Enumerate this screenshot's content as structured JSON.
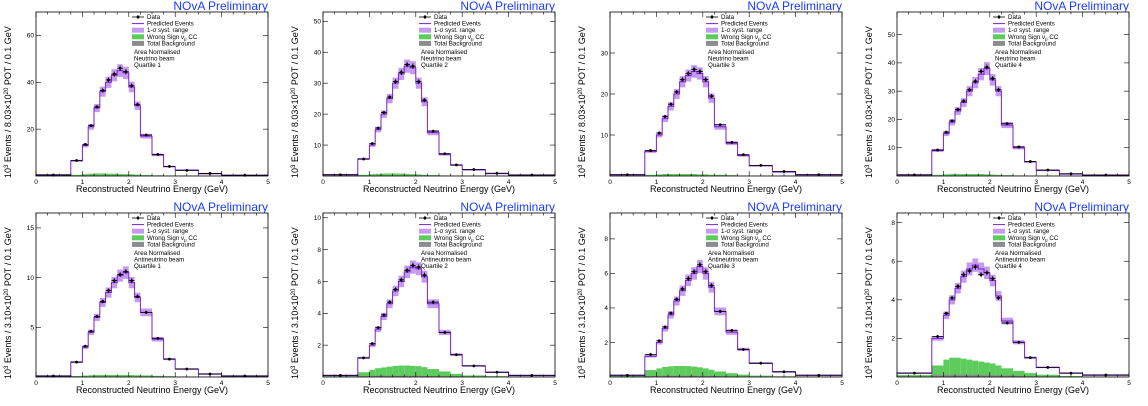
{
  "figure": {
    "banner": "NOvA Preliminary",
    "xlabel": "Reconstructed Neutrino Energy (GeV)",
    "ylabel_prefix": "10",
    "ylabel_exp": "3",
    "ylabel_mid": " Events / ",
    "ylabel_units": " POT / 0.1 GeV",
    "legend": {
      "data": "Data",
      "pred": "Predicted Events",
      "syst": "1-σ syst. range",
      "wrong_sign": "Wrong Sign ν",
      "wrong_sign_sub": "μ",
      "wrong_sign_suffix": " CC",
      "background": "Total Background",
      "norm": "Area Normalised"
    },
    "colors": {
      "banner": "#1a3cff",
      "prediction": "#7a1fd0",
      "syst_band": "#c79af2",
      "wrong_sign": "#5dcc5d",
      "background": "#8c8c8c",
      "data": "#000000"
    }
  },
  "chart_data": [
    {
      "type": "histogram",
      "beam": "Neutrino beam",
      "quartile": "Quartile 1",
      "pot_mantissa": "8.03",
      "pot_exp": "20",
      "xlim": [
        0,
        5
      ],
      "ylim": [
        0,
        70
      ],
      "yticks": [
        20,
        40,
        60
      ],
      "bin_edges": [
        0.0,
        0.75,
        1.0,
        1.125,
        1.25,
        1.375,
        1.5,
        1.625,
        1.75,
        1.875,
        2.0,
        2.125,
        2.25,
        2.5,
        2.75,
        3.0,
        3.5,
        4.0,
        5.0
      ],
      "prediction": [
        0.5,
        6.5,
        13,
        21,
        29,
        36,
        40,
        43,
        45,
        44,
        38,
        30,
        17,
        9,
        4,
        2.5,
        1,
        0.3
      ],
      "data": [
        0.4,
        6.6,
        13.5,
        21.5,
        29.5,
        36.5,
        41,
        43.5,
        46,
        44.5,
        38.5,
        30.5,
        17.5,
        9.2,
        4.1,
        2.4,
        1.1,
        0.3
      ],
      "wrong_sign": [
        0.1,
        0.5,
        0.8,
        1.0,
        1.1,
        1.1,
        1.0,
        1.0,
        0.9,
        0.8,
        0.7,
        0.6,
        0.4,
        0.3,
        0.2,
        0.1,
        0.05,
        0.02
      ],
      "background": [
        0.05,
        0.2,
        0.3,
        0.3,
        0.3,
        0.3,
        0.3,
        0.3,
        0.3,
        0.3,
        0.3,
        0.2,
        0.2,
        0.2,
        0.1,
        0.1,
        0.05,
        0.02
      ]
    },
    {
      "type": "histogram",
      "beam": "Neutrino beam",
      "quartile": "Quartile 2",
      "pot_mantissa": "8.03",
      "pot_exp": "20",
      "xlim": [
        0,
        5
      ],
      "ylim": [
        0,
        53
      ],
      "yticks": [
        10,
        20,
        30,
        40,
        50
      ],
      "bin_edges": [
        0.0,
        0.75,
        1.0,
        1.125,
        1.25,
        1.375,
        1.5,
        1.625,
        1.75,
        1.875,
        2.0,
        2.125,
        2.25,
        2.5,
        2.75,
        3.0,
        3.5,
        4.0,
        5.0
      ],
      "prediction": [
        0.4,
        5.5,
        10,
        15,
        20,
        25,
        30,
        33,
        35.5,
        35,
        30,
        24,
        14,
        7,
        3.5,
        2,
        0.8,
        0.3
      ],
      "data": [
        0.4,
        5.5,
        10.5,
        15.5,
        20.5,
        25.5,
        30.5,
        33.5,
        36,
        35.5,
        30.5,
        24.5,
        14.5,
        7.2,
        3.6,
        2.1,
        0.9,
        0.3
      ],
      "wrong_sign": [
        0.1,
        0.4,
        0.6,
        0.7,
        0.8,
        0.8,
        0.8,
        0.8,
        0.7,
        0.6,
        0.5,
        0.4,
        0.3,
        0.2,
        0.15,
        0.1,
        0.05,
        0.02
      ],
      "background": [
        0.05,
        0.15,
        0.2,
        0.2,
        0.2,
        0.2,
        0.2,
        0.2,
        0.2,
        0.2,
        0.2,
        0.15,
        0.15,
        0.1,
        0.1,
        0.05,
        0.05,
        0.02
      ]
    },
    {
      "type": "histogram",
      "beam": "Neutrino beam",
      "quartile": "Quartile 3",
      "pot_mantissa": "8.03",
      "pot_exp": "20",
      "xlim": [
        0,
        5
      ],
      "ylim": [
        0,
        40
      ],
      "yticks": [
        10,
        20,
        30
      ],
      "bin_edges": [
        0.0,
        0.75,
        1.0,
        1.125,
        1.25,
        1.375,
        1.5,
        1.625,
        1.75,
        1.875,
        2.0,
        2.125,
        2.25,
        2.5,
        2.75,
        3.0,
        3.5,
        4.0,
        5.0
      ],
      "prediction": [
        0.3,
        6,
        10,
        14,
        17,
        20,
        23,
        24.5,
        25.5,
        25,
        23,
        19,
        12,
        8,
        5,
        2.5,
        1,
        0.3
      ],
      "data": [
        0.3,
        6.2,
        10.5,
        14.5,
        17.5,
        20.5,
        23.5,
        25,
        26,
        25.5,
        23.5,
        19.5,
        12.5,
        8.2,
        5.2,
        2.6,
        1.1,
        0.3
      ],
      "wrong_sign": [
        0.05,
        0.3,
        0.4,
        0.5,
        0.5,
        0.5,
        0.5,
        0.5,
        0.5,
        0.4,
        0.4,
        0.3,
        0.3,
        0.2,
        0.1,
        0.1,
        0.05,
        0.02
      ],
      "background": [
        0.05,
        0.1,
        0.15,
        0.15,
        0.15,
        0.15,
        0.15,
        0.15,
        0.15,
        0.15,
        0.15,
        0.1,
        0.1,
        0.1,
        0.05,
        0.05,
        0.05,
        0.02
      ]
    },
    {
      "type": "histogram",
      "beam": "Neutrino beam",
      "quartile": "Quartile 4",
      "pot_mantissa": "8.03",
      "pot_exp": "20",
      "xlim": [
        0,
        5
      ],
      "ylim": [
        0,
        58
      ],
      "yticks": [
        10,
        20,
        30,
        40,
        50
      ],
      "bin_edges": [
        0.0,
        0.75,
        1.0,
        1.125,
        1.25,
        1.375,
        1.5,
        1.625,
        1.75,
        1.875,
        2.0,
        2.125,
        2.25,
        2.5,
        2.75,
        3.0,
        3.5,
        4.0,
        5.0
      ],
      "prediction": [
        0.4,
        9,
        15,
        19,
        23,
        26,
        30,
        33,
        36,
        38,
        34,
        30,
        18,
        10,
        5,
        2,
        0.7,
        0.3
      ],
      "data": [
        0.4,
        9.2,
        15.5,
        19.5,
        23.5,
        26.5,
        30.5,
        33.5,
        37,
        38.5,
        34.5,
        30.5,
        18.5,
        10.3,
        5.1,
        2.1,
        0.8,
        0.3
      ],
      "wrong_sign": [
        0.1,
        0.4,
        0.6,
        0.7,
        0.7,
        0.7,
        0.7,
        0.7,
        0.7,
        0.6,
        0.5,
        0.4,
        0.3,
        0.2,
        0.1,
        0.1,
        0.05,
        0.02
      ],
      "background": [
        0.05,
        0.15,
        0.2,
        0.2,
        0.2,
        0.2,
        0.2,
        0.2,
        0.2,
        0.2,
        0.2,
        0.15,
        0.15,
        0.1,
        0.1,
        0.05,
        0.05,
        0.02
      ]
    },
    {
      "type": "histogram",
      "beam": "Antineutrino beam",
      "quartile": "Quartile 1",
      "pot_mantissa": "3.10",
      "pot_exp": "20",
      "xlim": [
        0,
        5
      ],
      "ylim": [
        0,
        16.5
      ],
      "yticks": [
        5,
        10,
        15
      ],
      "bin_edges": [
        0.0,
        0.75,
        1.0,
        1.125,
        1.25,
        1.375,
        1.5,
        1.625,
        1.75,
        1.875,
        2.0,
        2.125,
        2.25,
        2.5,
        2.75,
        3.0,
        3.5,
        4.0,
        5.0
      ],
      "prediction": [
        0.1,
        1.5,
        3,
        4.5,
        6,
        7.5,
        8.5,
        9.5,
        10.2,
        10.5,
        9.5,
        8,
        6.5,
        3.8,
        1.8,
        0.8,
        0.3,
        0.1
      ],
      "data": [
        0.1,
        1.5,
        3.1,
        4.6,
        6.1,
        7.6,
        8.7,
        9.7,
        10.3,
        10.6,
        9.7,
        8.1,
        6.5,
        3.9,
        1.8,
        0.8,
        0.3,
        0.1
      ],
      "wrong_sign": [
        0.02,
        0.1,
        0.15,
        0.18,
        0.2,
        0.2,
        0.2,
        0.2,
        0.2,
        0.2,
        0.2,
        0.18,
        0.16,
        0.12,
        0.08,
        0.05,
        0.03,
        0.01
      ],
      "background": [
        0.01,
        0.05,
        0.06,
        0.06,
        0.06,
        0.06,
        0.06,
        0.06,
        0.06,
        0.06,
        0.06,
        0.05,
        0.05,
        0.04,
        0.03,
        0.02,
        0.01,
        0.01
      ]
    },
    {
      "type": "histogram",
      "beam": "Antineutrino beam",
      "quartile": "Quartile 2",
      "pot_mantissa": "3.10",
      "pot_exp": "20",
      "xlim": [
        0,
        5
      ],
      "ylim": [
        0,
        10.3
      ],
      "yticks": [
        2,
        4,
        6,
        8,
        10
      ],
      "bin_edges": [
        0.0,
        0.75,
        1.0,
        1.125,
        1.25,
        1.375,
        1.5,
        1.625,
        1.75,
        1.875,
        2.0,
        2.125,
        2.25,
        2.5,
        2.75,
        3.0,
        3.5,
        4.0,
        5.0
      ],
      "prediction": [
        0.1,
        1.2,
        2,
        3,
        3.8,
        4.6,
        5.4,
        6,
        6.6,
        6.9,
        6.8,
        6.3,
        4.6,
        2.8,
        1.4,
        0.7,
        0.3,
        0.1
      ],
      "data": [
        0.1,
        1.2,
        2.1,
        3.1,
        3.9,
        4.7,
        5.5,
        6.1,
        6.7,
        7.0,
        6.9,
        6.4,
        4.7,
        2.8,
        1.4,
        0.7,
        0.3,
        0.1
      ],
      "wrong_sign": [
        0.05,
        0.3,
        0.45,
        0.55,
        0.6,
        0.65,
        0.7,
        0.72,
        0.72,
        0.7,
        0.68,
        0.62,
        0.5,
        0.35,
        0.2,
        0.1,
        0.05,
        0.02
      ],
      "background": [
        0.02,
        0.06,
        0.08,
        0.08,
        0.08,
        0.08,
        0.08,
        0.08,
        0.08,
        0.08,
        0.08,
        0.07,
        0.06,
        0.05,
        0.04,
        0.03,
        0.02,
        0.01
      ]
    },
    {
      "type": "histogram",
      "beam": "Antineutrino beam",
      "quartile": "Quartile 3",
      "pot_mantissa": "3.10",
      "pot_exp": "20",
      "xlim": [
        0,
        5
      ],
      "ylim": [
        0,
        9.5
      ],
      "yticks": [
        2,
        4,
        6,
        8
      ],
      "bin_edges": [
        0.0,
        0.75,
        1.0,
        1.125,
        1.25,
        1.375,
        1.5,
        1.625,
        1.75,
        1.875,
        2.0,
        2.125,
        2.25,
        2.5,
        2.75,
        3.0,
        3.5,
        4.0,
        5.0
      ],
      "prediction": [
        0.1,
        1.2,
        2,
        2.8,
        3.6,
        4.4,
        5,
        5.6,
        6,
        6.4,
        6,
        5.2,
        3.8,
        2.6,
        1.6,
        0.8,
        0.3,
        0.1
      ],
      "data": [
        0.1,
        1.3,
        2.1,
        2.9,
        3.7,
        4.5,
        5.1,
        5.7,
        6.1,
        6.5,
        6.1,
        5.3,
        3.8,
        2.7,
        1.6,
        0.8,
        0.3,
        0.1
      ],
      "wrong_sign": [
        0.08,
        0.4,
        0.5,
        0.58,
        0.62,
        0.64,
        0.64,
        0.63,
        0.6,
        0.56,
        0.5,
        0.42,
        0.32,
        0.22,
        0.14,
        0.08,
        0.04,
        0.02
      ],
      "background": [
        0.02,
        0.06,
        0.08,
        0.08,
        0.08,
        0.08,
        0.08,
        0.08,
        0.08,
        0.08,
        0.07,
        0.06,
        0.05,
        0.04,
        0.03,
        0.02,
        0.02,
        0.01
      ]
    },
    {
      "type": "histogram",
      "beam": "Antineutrino beam",
      "quartile": "Quartile 4",
      "pot_mantissa": "3.10",
      "pot_exp": "20",
      "xlim": [
        0,
        5
      ],
      "ylim": [
        0,
        8.5
      ],
      "yticks": [
        2,
        4,
        6,
        8
      ],
      "bin_edges": [
        0.0,
        0.75,
        1.0,
        1.125,
        1.25,
        1.375,
        1.5,
        1.625,
        1.75,
        1.875,
        2.0,
        2.125,
        2.25,
        2.5,
        2.75,
        3.0,
        3.5,
        4.0,
        5.0
      ],
      "prediction": [
        0.2,
        2,
        3.2,
        4,
        4.6,
        5.2,
        5.6,
        5.8,
        5.6,
        5.4,
        5,
        4.2,
        2.9,
        1.8,
        1,
        0.5,
        0.2,
        0.1
      ],
      "data": [
        0.2,
        2.1,
        3.3,
        4.1,
        4.7,
        5.3,
        5.5,
        5.7,
        5.3,
        5.4,
        5.1,
        4.1,
        2.8,
        1.8,
        1.0,
        0.5,
        0.2,
        0.1
      ],
      "wrong_sign": [
        0.1,
        0.6,
        0.9,
        1.0,
        1.0,
        0.95,
        0.9,
        0.85,
        0.8,
        0.75,
        0.7,
        0.6,
        0.45,
        0.32,
        0.2,
        0.12,
        0.05,
        0.02
      ],
      "background": [
        0.03,
        0.1,
        0.12,
        0.12,
        0.12,
        0.12,
        0.12,
        0.12,
        0.11,
        0.1,
        0.1,
        0.09,
        0.08,
        0.06,
        0.04,
        0.03,
        0.02,
        0.01
      ]
    }
  ]
}
